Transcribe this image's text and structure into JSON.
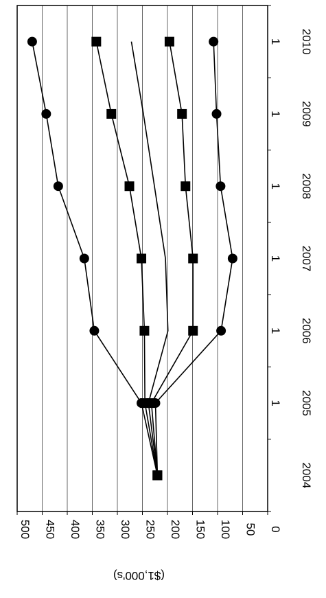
{
  "chart_data": {
    "type": "line",
    "orientation": "rotated-90",
    "ylabel": "($1,000's)",
    "ylim": [
      0,
      500
    ],
    "yticks": [
      0,
      50,
      100,
      150,
      200,
      250,
      300,
      350,
      400,
      450,
      500
    ],
    "grid": true,
    "x_year_labels": [
      "2004",
      "2005",
      "2006",
      "2007",
      "2008",
      "2009",
      "2010"
    ],
    "x_index_labels": [
      "",
      "1",
      "1",
      "1",
      "1",
      "1",
      "1"
    ],
    "series": [
      {
        "marker": "circle",
        "values": [
          220,
          252,
          346,
          366,
          418,
          442,
          470
        ]
      },
      {
        "marker": "square",
        "values": [
          220,
          245,
          246,
          252,
          276,
          312,
          342
        ]
      },
      {
        "marker": "none",
        "values": [
          220,
          238,
          199,
          204,
          226,
          248,
          272
        ]
      },
      {
        "marker": "square",
        "values": [
          220,
          232,
          149,
          149,
          164,
          171,
          196
        ]
      },
      {
        "marker": "circle",
        "values": [
          220,
          224,
          93,
          70,
          94,
          102,
          108
        ]
      }
    ]
  }
}
